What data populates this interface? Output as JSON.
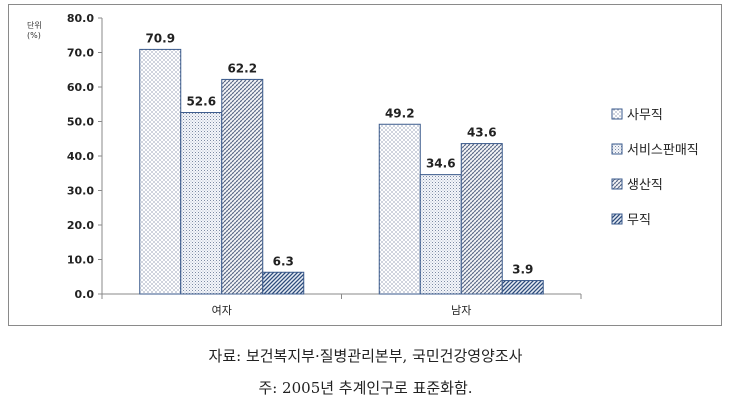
{
  "chart_data": {
    "type": "bar",
    "unit_label": "단위",
    "unit_symbol": "(%)",
    "categories": [
      "여자",
      "남자"
    ],
    "series": [
      {
        "name": "사무직",
        "values": [
          70.9,
          49.2
        ],
        "pattern": "dots"
      },
      {
        "name": "서비스판매직",
        "values": [
          52.6,
          34.6
        ],
        "pattern": "fine-dots"
      },
      {
        "name": "생산직",
        "values": [
          62.2,
          43.6
        ],
        "pattern": "cross"
      },
      {
        "name": "무직",
        "values": [
          6.3,
          3.9
        ],
        "pattern": "diagonal"
      }
    ],
    "ylim": [
      0,
      80
    ],
    "yticks": [
      "0.0",
      "10.0",
      "20.0",
      "30.0",
      "40.0",
      "50.0",
      "60.0",
      "70.0",
      "80.0"
    ],
    "legend_position": "right",
    "grid": false
  },
  "caption": {
    "source": "자료: 보건복지부·질병관리본부, 국민건강영양조사",
    "note": "주: 2005년 추계인구로 표준화함."
  },
  "colors": {
    "bar_stroke": "#3a5a8c",
    "dots": "#5a6a8a",
    "cross": "#3a4a6a",
    "diagonal": "#2c4a7a",
    "axis": "#8a8a8a"
  }
}
